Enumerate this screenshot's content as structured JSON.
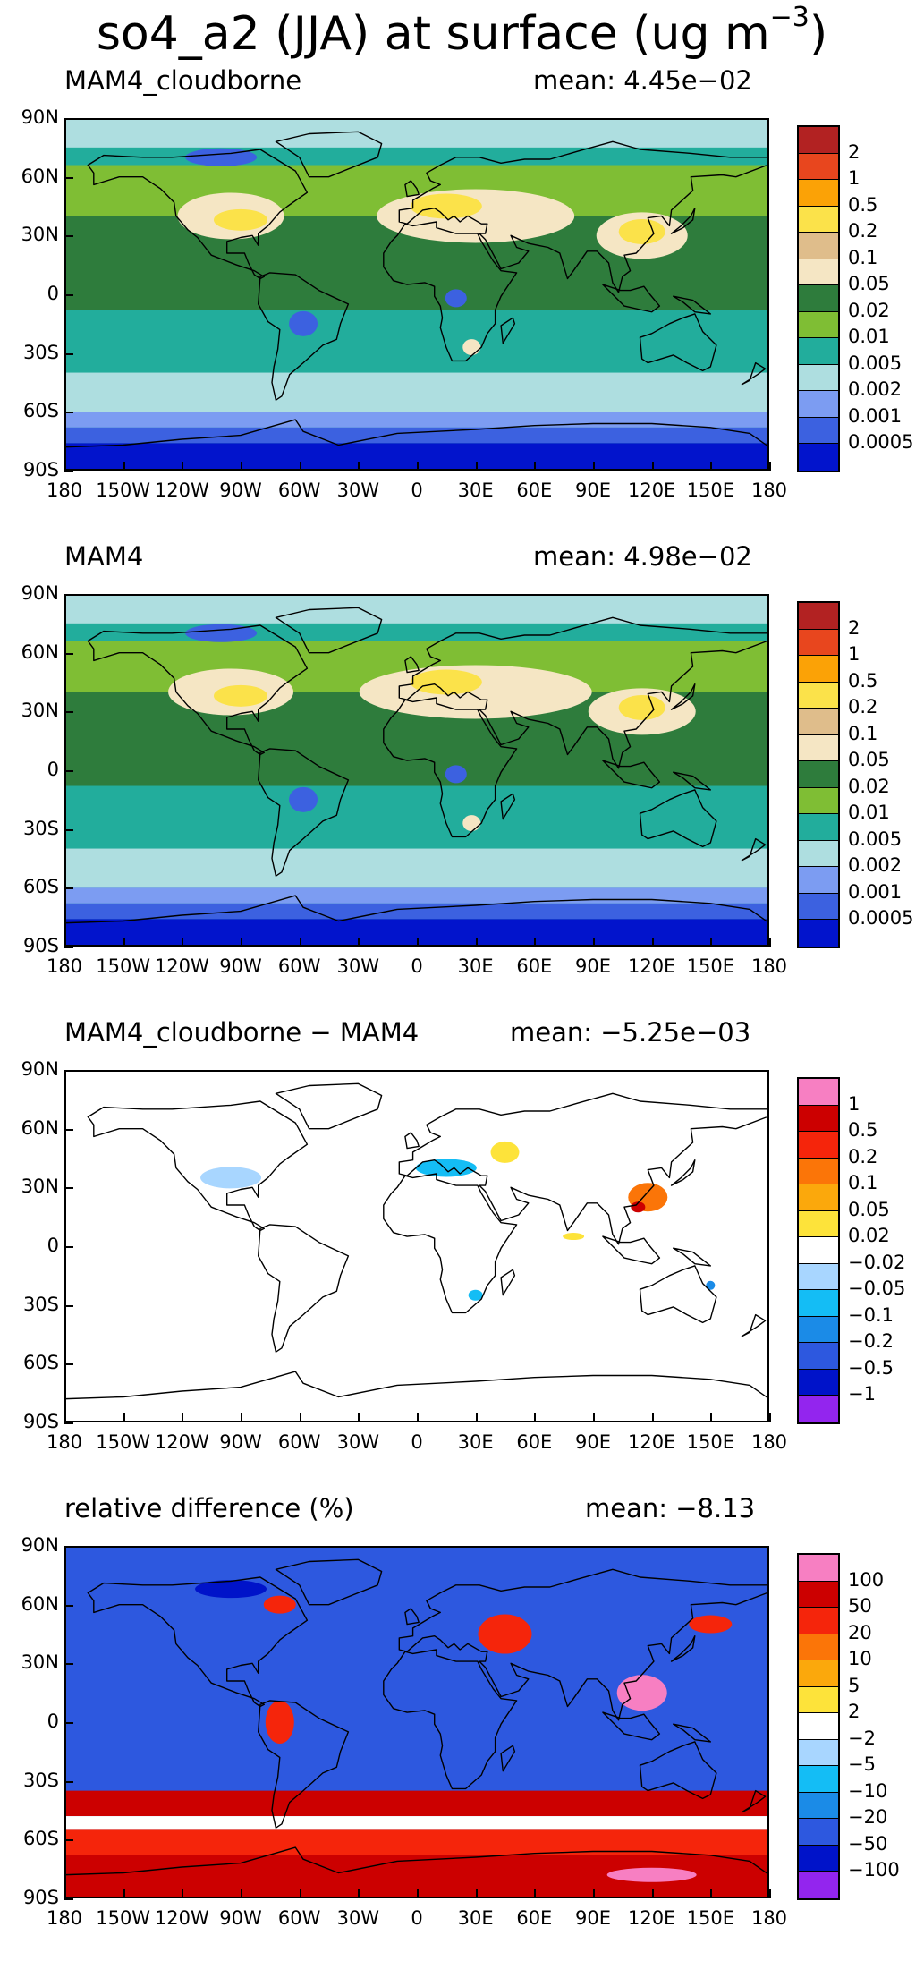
{
  "title": {
    "main": "so4_a2 (JJA) at surface (ug m",
    "sup": "−3",
    "close": ")"
  },
  "axes": {
    "y_ticks": [
      "90N",
      "60N",
      "30N",
      "0",
      "30S",
      "60S",
      "90S"
    ],
    "x_ticks": [
      "180",
      "150W",
      "120W",
      "90W",
      "60W",
      "30W",
      "0",
      "30E",
      "60E",
      "90E",
      "120E",
      "150E",
      "180"
    ]
  },
  "panels": [
    {
      "id": "cloudborne",
      "left_label": "MAM4_cloudborne",
      "right_label": "mean: 4.45e−02",
      "palette": [
        "#b22222",
        "#e8461e",
        "#fba206",
        "#fbe24a",
        "#dfbd8b",
        "#f5e6c4",
        "#2e7c3c",
        "#7fbe34",
        "#22ad9c",
        "#aedee0",
        "#7c9cf2",
        "#3c61e0",
        "#0214cc"
      ],
      "levels": [
        "2",
        "1",
        "0.5",
        "0.2",
        "0.1",
        "0.05",
        "0.02",
        "0.01",
        "0.005",
        "0.002",
        "0.001",
        "0.0005"
      ],
      "map_fill_index": 8
    },
    {
      "id": "mam4",
      "left_label": "MAM4",
      "right_label": "mean: 4.98e−02",
      "palette": [
        "#b22222",
        "#e8461e",
        "#fba206",
        "#fbe24a",
        "#dfbd8b",
        "#f5e6c4",
        "#2e7c3c",
        "#7fbe34",
        "#22ad9c",
        "#aedee0",
        "#7c9cf2",
        "#3c61e0",
        "#0214cc"
      ],
      "levels": [
        "2",
        "1",
        "0.5",
        "0.2",
        "0.1",
        "0.05",
        "0.02",
        "0.01",
        "0.005",
        "0.002",
        "0.001",
        "0.0005"
      ],
      "map_fill_index": 8
    },
    {
      "id": "difference",
      "left_label": "MAM4_cloudborne − MAM4",
      "right_label": "mean: −5.25e−03",
      "palette": [
        "#f77fc2",
        "#cc0000",
        "#f5250b",
        "#fb7508",
        "#fba80c",
        "#fde33a",
        "#ffffff",
        "#a8d6ff",
        "#14bdf5",
        "#1b8be7",
        "#2d58df",
        "#0013c9",
        "#9325ee"
      ],
      "levels": [
        "1",
        "0.5",
        "0.2",
        "0.1",
        "0.05",
        "0.02",
        "−0.02",
        "−0.05",
        "−0.1",
        "−0.2",
        "−0.5",
        "−1"
      ],
      "map_fill_index": 6
    },
    {
      "id": "relative",
      "left_label": "relative difference (%)",
      "right_label": "mean: −8.13",
      "palette": [
        "#f77fc2",
        "#cc0000",
        "#f5250b",
        "#fb7508",
        "#fba80c",
        "#fde33a",
        "#ffffff",
        "#a8d6ff",
        "#14bdf5",
        "#1b8be7",
        "#2d58df",
        "#0013c9",
        "#9325ee"
      ],
      "levels": [
        "100",
        "50",
        "20",
        "10",
        "5",
        "2",
        "−2",
        "−5",
        "−10",
        "−20",
        "−50",
        "−100"
      ],
      "map_fill_index": 10
    }
  ]
}
